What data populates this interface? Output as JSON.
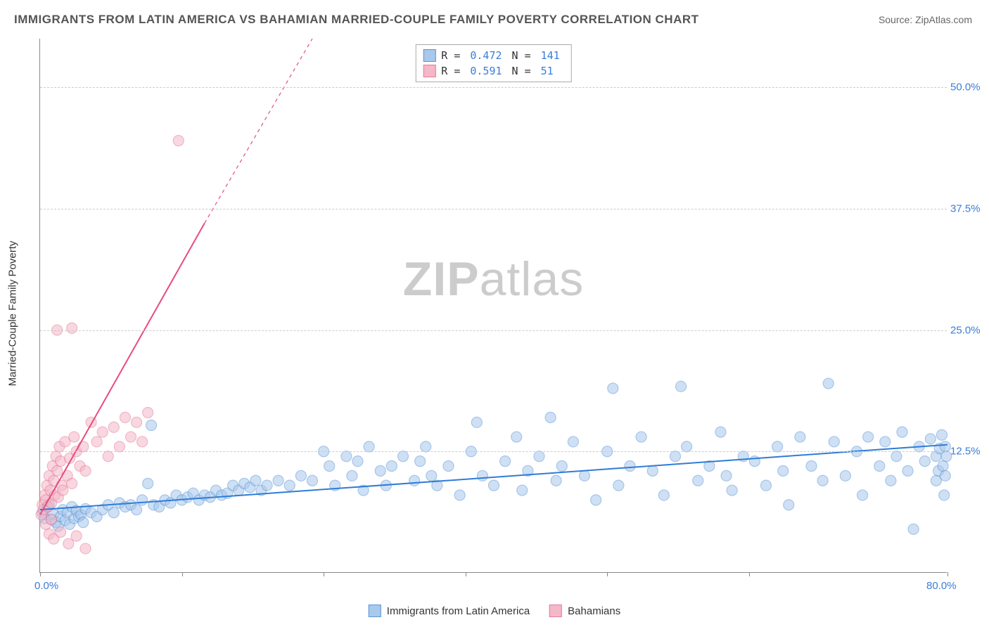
{
  "title": "IMMIGRANTS FROM LATIN AMERICA VS BAHAMIAN MARRIED-COUPLE FAMILY POVERTY CORRELATION CHART",
  "source": "Source: ZipAtlas.com",
  "watermark_bold": "ZIP",
  "watermark_rest": "atlas",
  "ylabel": "Married-Couple Family Poverty",
  "chart": {
    "type": "scatter",
    "xlim": [
      0,
      80
    ],
    "ylim": [
      0,
      55
    ],
    "xticks": [
      0,
      12.5,
      25,
      37.5,
      50,
      62.5,
      80
    ],
    "xtick_labels": {
      "0": "0.0%",
      "80": "80.0%"
    },
    "yticks": [
      12.5,
      25,
      37.5,
      50
    ],
    "ytick_labels": {
      "12.5": "12.5%",
      "25": "25.0%",
      "37.5": "37.5%",
      "50": "50.0%"
    },
    "background": "#ffffff",
    "grid_color": "#cccccc",
    "axis_color": "#888888",
    "marker_radius": 7.5,
    "series": [
      {
        "name": "Immigrants from Latin America",
        "color_fill": "#a8c8ec",
        "color_stroke": "#5a96d8",
        "r_label": "R =",
        "r_value": "0.472",
        "n_label": "N =",
        "n_value": "141",
        "trend": {
          "x1": 0,
          "y1": 6.5,
          "x2": 80,
          "y2": 13.2,
          "color": "#2e7cd6",
          "width": 2
        },
        "points": [
          [
            0.2,
            6.2
          ],
          [
            0.4,
            5.6
          ],
          [
            0.6,
            6.8
          ],
          [
            0.8,
            7.0
          ],
          [
            1.0,
            5.5
          ],
          [
            1.2,
            6.0
          ],
          [
            1.4,
            5.2
          ],
          [
            1.6,
            4.8
          ],
          [
            1.8,
            5.8
          ],
          [
            2.0,
            6.5
          ],
          [
            2.2,
            5.4
          ],
          [
            2.4,
            6.2
          ],
          [
            2.6,
            5.0
          ],
          [
            2.8,
            6.8
          ],
          [
            3.0,
            5.6
          ],
          [
            3.2,
            6.4
          ],
          [
            3.4,
            5.8
          ],
          [
            3.6,
            6.0
          ],
          [
            3.8,
            5.2
          ],
          [
            4.0,
            6.6
          ],
          [
            4.5,
            6.2
          ],
          [
            5.0,
            5.8
          ],
          [
            5.5,
            6.5
          ],
          [
            6.0,
            7.0
          ],
          [
            6.5,
            6.2
          ],
          [
            7.0,
            7.2
          ],
          [
            7.5,
            6.8
          ],
          [
            8.0,
            7.0
          ],
          [
            8.5,
            6.5
          ],
          [
            9.0,
            7.5
          ],
          [
            9.5,
            9.2
          ],
          [
            9.8,
            15.2
          ],
          [
            10.0,
            7.0
          ],
          [
            10.5,
            6.8
          ],
          [
            11.0,
            7.5
          ],
          [
            11.5,
            7.2
          ],
          [
            12.0,
            8.0
          ],
          [
            12.5,
            7.5
          ],
          [
            13.0,
            7.8
          ],
          [
            13.5,
            8.2
          ],
          [
            14.0,
            7.5
          ],
          [
            14.5,
            8.0
          ],
          [
            15.0,
            7.8
          ],
          [
            15.5,
            8.5
          ],
          [
            16.0,
            8.0
          ],
          [
            16.5,
            8.2
          ],
          [
            17.0,
            9.0
          ],
          [
            17.5,
            8.5
          ],
          [
            18.0,
            9.2
          ],
          [
            18.5,
            8.8
          ],
          [
            19.0,
            9.5
          ],
          [
            19.5,
            8.5
          ],
          [
            20.0,
            9.0
          ],
          [
            21.0,
            9.5
          ],
          [
            22.0,
            9.0
          ],
          [
            23.0,
            10.0
          ],
          [
            24.0,
            9.5
          ],
          [
            25.0,
            12.5
          ],
          [
            25.5,
            11.0
          ],
          [
            26.0,
            9.0
          ],
          [
            27.0,
            12.0
          ],
          [
            27.5,
            10.0
          ],
          [
            28.0,
            11.5
          ],
          [
            28.5,
            8.5
          ],
          [
            29.0,
            13.0
          ],
          [
            30.0,
            10.5
          ],
          [
            30.5,
            9.0
          ],
          [
            31.0,
            11.0
          ],
          [
            32.0,
            12.0
          ],
          [
            33.0,
            9.5
          ],
          [
            33.5,
            11.5
          ],
          [
            34.0,
            13.0
          ],
          [
            34.5,
            10.0
          ],
          [
            35.0,
            9.0
          ],
          [
            36.0,
            11.0
          ],
          [
            37.0,
            8.0
          ],
          [
            38.0,
            12.5
          ],
          [
            38.5,
            15.5
          ],
          [
            39.0,
            10.0
          ],
          [
            40.0,
            9.0
          ],
          [
            41.0,
            11.5
          ],
          [
            42.0,
            14.0
          ],
          [
            42.5,
            8.5
          ],
          [
            43.0,
            10.5
          ],
          [
            44.0,
            12.0
          ],
          [
            45.0,
            16.0
          ],
          [
            45.5,
            9.5
          ],
          [
            46.0,
            11.0
          ],
          [
            47.0,
            13.5
          ],
          [
            48.0,
            10.0
          ],
          [
            49.0,
            7.5
          ],
          [
            50.0,
            12.5
          ],
          [
            50.5,
            19.0
          ],
          [
            51.0,
            9.0
          ],
          [
            52.0,
            11.0
          ],
          [
            53.0,
            14.0
          ],
          [
            54.0,
            10.5
          ],
          [
            55.0,
            8.0
          ],
          [
            56.0,
            12.0
          ],
          [
            56.5,
            19.2
          ],
          [
            57.0,
            13.0
          ],
          [
            58.0,
            9.5
          ],
          [
            59.0,
            11.0
          ],
          [
            60.0,
            14.5
          ],
          [
            60.5,
            10.0
          ],
          [
            61.0,
            8.5
          ],
          [
            62.0,
            12.0
          ],
          [
            63.0,
            11.5
          ],
          [
            64.0,
            9.0
          ],
          [
            65.0,
            13.0
          ],
          [
            65.5,
            10.5
          ],
          [
            66.0,
            7.0
          ],
          [
            67.0,
            14.0
          ],
          [
            68.0,
            11.0
          ],
          [
            69.0,
            9.5
          ],
          [
            69.5,
            19.5
          ],
          [
            70.0,
            13.5
          ],
          [
            71.0,
            10.0
          ],
          [
            72.0,
            12.5
          ],
          [
            72.5,
            8.0
          ],
          [
            73.0,
            14.0
          ],
          [
            74.0,
            11.0
          ],
          [
            74.5,
            13.5
          ],
          [
            75.0,
            9.5
          ],
          [
            75.5,
            12.0
          ],
          [
            76.0,
            14.5
          ],
          [
            76.5,
            10.5
          ],
          [
            77.0,
            4.5
          ],
          [
            77.5,
            13.0
          ],
          [
            78.0,
            11.5
          ],
          [
            78.5,
            13.8
          ],
          [
            79.0,
            12.0
          ],
          [
            79.0,
            9.5
          ],
          [
            79.2,
            10.5
          ],
          [
            79.3,
            12.8
          ],
          [
            79.5,
            14.2
          ],
          [
            79.6,
            11.0
          ],
          [
            79.7,
            8.0
          ],
          [
            79.8,
            13.0
          ],
          [
            79.8,
            10.0
          ],
          [
            79.9,
            12.0
          ]
        ]
      },
      {
        "name": "Bahamians",
        "color_fill": "#f4b8c8",
        "color_stroke": "#e67a9a",
        "r_label": "R =",
        "r_value": "0.591",
        "n_label": "N =",
        "n_value": "51",
        "trend": {
          "x1": 0,
          "y1": 6.0,
          "x2": 14.5,
          "y2": 36.0,
          "color": "#e84c7a",
          "width": 2
        },
        "trend_dashed": {
          "x1": 14.5,
          "y1": 36.0,
          "x2": 24,
          "y2": 55,
          "color": "#e84c7a",
          "width": 1.2
        },
        "points": [
          [
            0.1,
            6.0
          ],
          [
            0.2,
            7.0
          ],
          [
            0.3,
            6.5
          ],
          [
            0.4,
            8.0
          ],
          [
            0.5,
            7.5
          ],
          [
            0.6,
            9.0
          ],
          [
            0.7,
            6.8
          ],
          [
            0.8,
            10.0
          ],
          [
            0.9,
            8.5
          ],
          [
            1.0,
            7.2
          ],
          [
            1.1,
            11.0
          ],
          [
            1.2,
            9.5
          ],
          [
            1.3,
            8.0
          ],
          [
            1.4,
            12.0
          ],
          [
            1.5,
            10.5
          ],
          [
            1.6,
            7.8
          ],
          [
            1.7,
            13.0
          ],
          [
            1.8,
            11.5
          ],
          [
            1.9,
            9.0
          ],
          [
            2.0,
            8.5
          ],
          [
            2.2,
            13.5
          ],
          [
            2.4,
            10.0
          ],
          [
            2.6,
            11.8
          ],
          [
            2.8,
            9.2
          ],
          [
            3.0,
            14.0
          ],
          [
            3.2,
            12.5
          ],
          [
            3.5,
            11.0
          ],
          [
            3.8,
            13.0
          ],
          [
            4.0,
            10.5
          ],
          [
            4.5,
            15.5
          ],
          [
            5.0,
            13.5
          ],
          [
            5.5,
            14.5
          ],
          [
            6.0,
            12.0
          ],
          [
            6.5,
            15.0
          ],
          [
            7.0,
            13.0
          ],
          [
            7.5,
            16.0
          ],
          [
            8.0,
            14.0
          ],
          [
            8.5,
            15.5
          ],
          [
            9.0,
            13.5
          ],
          [
            9.5,
            16.5
          ],
          [
            0.8,
            4.0
          ],
          [
            1.2,
            3.5
          ],
          [
            1.8,
            4.2
          ],
          [
            2.5,
            3.0
          ],
          [
            3.2,
            3.8
          ],
          [
            4.0,
            2.5
          ],
          [
            1.5,
            25.0
          ],
          [
            2.8,
            25.2
          ],
          [
            12.2,
            44.5
          ],
          [
            0.5,
            5.0
          ],
          [
            1.0,
            5.5
          ]
        ]
      }
    ]
  },
  "legend_bottom": [
    {
      "label": "Immigrants from Latin America",
      "fill": "#a8c8ec",
      "stroke": "#5a96d8"
    },
    {
      "label": "Bahamians",
      "fill": "#f4b8c8",
      "stroke": "#e67a9a"
    }
  ]
}
